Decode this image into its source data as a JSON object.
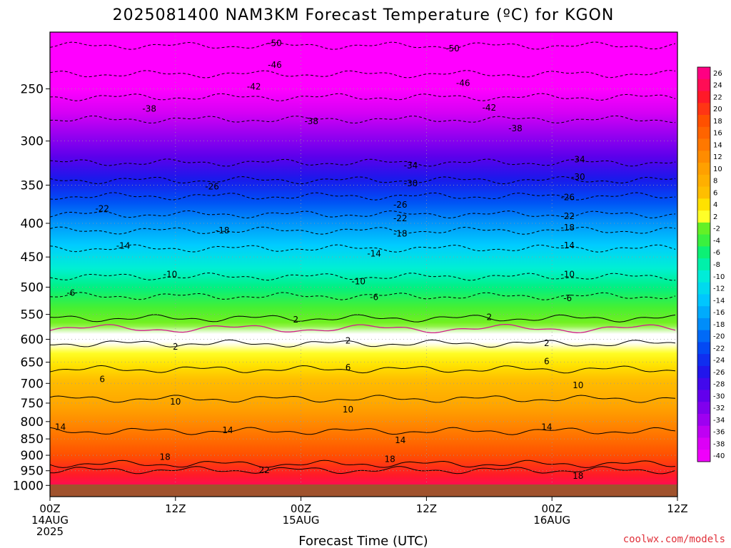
{
  "title": "2025081400 NAM3KM Forecast Temperature (ºC) for KGON",
  "credit": "coolwx.com/models",
  "colors": {
    "ground": "#a0522d",
    "freezing_line": "#d0208a",
    "grid": "#9a9a9a"
  },
  "chart_data": {
    "type": "heatmap",
    "title": "2025081400 NAM3KM Forecast Temperature (ºC) for KGON",
    "xlabel": "Forecast Time (UTC)",
    "ylabel": "",
    "x_range_hours": [
      0,
      60
    ],
    "y_scale": "log",
    "y_range_hpa": [
      1040,
      205
    ],
    "y_ticks": [
      250,
      300,
      350,
      400,
      450,
      500,
      550,
      600,
      650,
      700,
      750,
      800,
      850,
      900,
      950,
      1000
    ],
    "x_ticks": [
      {
        "hour": 0,
        "lines": [
          "00Z",
          "14AUG",
          "2025"
        ]
      },
      {
        "hour": 12,
        "lines": [
          "12Z"
        ]
      },
      {
        "hour": 24,
        "lines": [
          "00Z",
          "15AUG"
        ]
      },
      {
        "hour": 36,
        "lines": [
          "12Z"
        ]
      },
      {
        "hour": 48,
        "lines": [
          "00Z",
          "16AUG"
        ]
      },
      {
        "hour": 60,
        "lines": [
          "12Z"
        ]
      }
    ],
    "colorbar_ticks": [
      26,
      24,
      22,
      20,
      18,
      16,
      14,
      12,
      10,
      8,
      6,
      4,
      2,
      -2,
      -4,
      -6,
      -8,
      -10,
      -12,
      -14,
      -16,
      -18,
      -20,
      -22,
      -24,
      -26,
      -28,
      -30,
      -32,
      -34,
      -36,
      -38,
      -40
    ],
    "profile_pressure_hpa": [
      1000,
      950,
      900,
      850,
      800,
      750,
      700,
      650,
      600,
      570,
      550,
      500,
      450,
      400,
      350,
      300,
      250,
      215
    ],
    "profile_temperature_c": [
      24,
      21,
      18,
      15,
      12,
      9,
      6.5,
      3.5,
      0,
      -1.5,
      -3,
      -7,
      -12,
      -18,
      -25,
      -33,
      -42,
      -50
    ],
    "contours": [
      {
        "level": "-50",
        "labels": [
          {
            "hour": 21.5,
            "p": 213
          },
          {
            "hour": 38.5,
            "p": 217
          }
        ]
      },
      {
        "level": "-46",
        "labels": [
          {
            "hour": 21.5,
            "p": 230
          },
          {
            "hour": 39.5,
            "p": 245
          }
        ]
      },
      {
        "level": "-42",
        "labels": [
          {
            "hour": 19.5,
            "p": 248
          },
          {
            "hour": 42,
            "p": 267
          }
        ]
      },
      {
        "level": "-38",
        "labels": [
          {
            "hour": 9.5,
            "p": 268
          },
          {
            "hour": 25,
            "p": 280
          },
          {
            "hour": 44.5,
            "p": 287
          }
        ]
      },
      {
        "level": "-34",
        "labels": [
          {
            "hour": 34.5,
            "p": 327
          },
          {
            "hour": 50.5,
            "p": 320
          }
        ]
      },
      {
        "level": "-30",
        "labels": [
          {
            "hour": 34.5,
            "p": 348
          },
          {
            "hour": 50.5,
            "p": 340
          }
        ]
      },
      {
        "level": "-26",
        "labels": [
          {
            "hour": 15.5,
            "p": 352
          },
          {
            "hour": 33.5,
            "p": 375
          },
          {
            "hour": 49.5,
            "p": 365
          }
        ]
      },
      {
        "level": "-22",
        "labels": [
          {
            "hour": 5,
            "p": 380
          },
          {
            "hour": 33.5,
            "p": 393
          },
          {
            "hour": 49.5,
            "p": 390
          }
        ]
      },
      {
        "level": "-18",
        "labels": [
          {
            "hour": 16.5,
            "p": 410
          },
          {
            "hour": 33.5,
            "p": 415
          },
          {
            "hour": 49.5,
            "p": 406
          }
        ]
      },
      {
        "level": "-14",
        "labels": [
          {
            "hour": 7,
            "p": 433
          },
          {
            "hour": 31,
            "p": 445
          },
          {
            "hour": 49.5,
            "p": 432
          }
        ]
      },
      {
        "level": "-10",
        "labels": [
          {
            "hour": 11.5,
            "p": 478
          },
          {
            "hour": 29.5,
            "p": 490
          },
          {
            "hour": 49.5,
            "p": 478
          }
        ]
      },
      {
        "level": "-6",
        "labels": [
          {
            "hour": 2,
            "p": 510
          },
          {
            "hour": 31,
            "p": 518
          },
          {
            "hour": 49.5,
            "p": 520
          }
        ]
      },
      {
        "level": "2",
        "labels": [
          {
            "hour": 23.5,
            "p": 560
          },
          {
            "hour": 42,
            "p": 555
          }
        ]
      },
      {
        "level": "2",
        "labels": [
          {
            "hour": 12,
            "p": 616
          },
          {
            "hour": 28.5,
            "p": 603
          },
          {
            "hour": 47.5,
            "p": 608
          }
        ]
      },
      {
        "level": "6",
        "labels": [
          {
            "hour": 5,
            "p": 690
          },
          {
            "hour": 28.5,
            "p": 662
          },
          {
            "hour": 47.5,
            "p": 648
          }
        ]
      },
      {
        "level": "10",
        "labels": [
          {
            "hour": 12,
            "p": 746
          },
          {
            "hour": 28.5,
            "p": 767
          },
          {
            "hour": 50.5,
            "p": 705
          }
        ]
      },
      {
        "level": "14",
        "labels": [
          {
            "hour": 1,
            "p": 815
          },
          {
            "hour": 17,
            "p": 825
          },
          {
            "hour": 33.5,
            "p": 854
          },
          {
            "hour": 47.5,
            "p": 815
          }
        ]
      },
      {
        "level": "18",
        "labels": [
          {
            "hour": 11,
            "p": 905
          },
          {
            "hour": 32.5,
            "p": 912
          },
          {
            "hour": 50.5,
            "p": 968
          }
        ]
      },
      {
        "level": "22",
        "labels": [
          {
            "hour": 20.5,
            "p": 948
          }
        ]
      }
    ]
  }
}
